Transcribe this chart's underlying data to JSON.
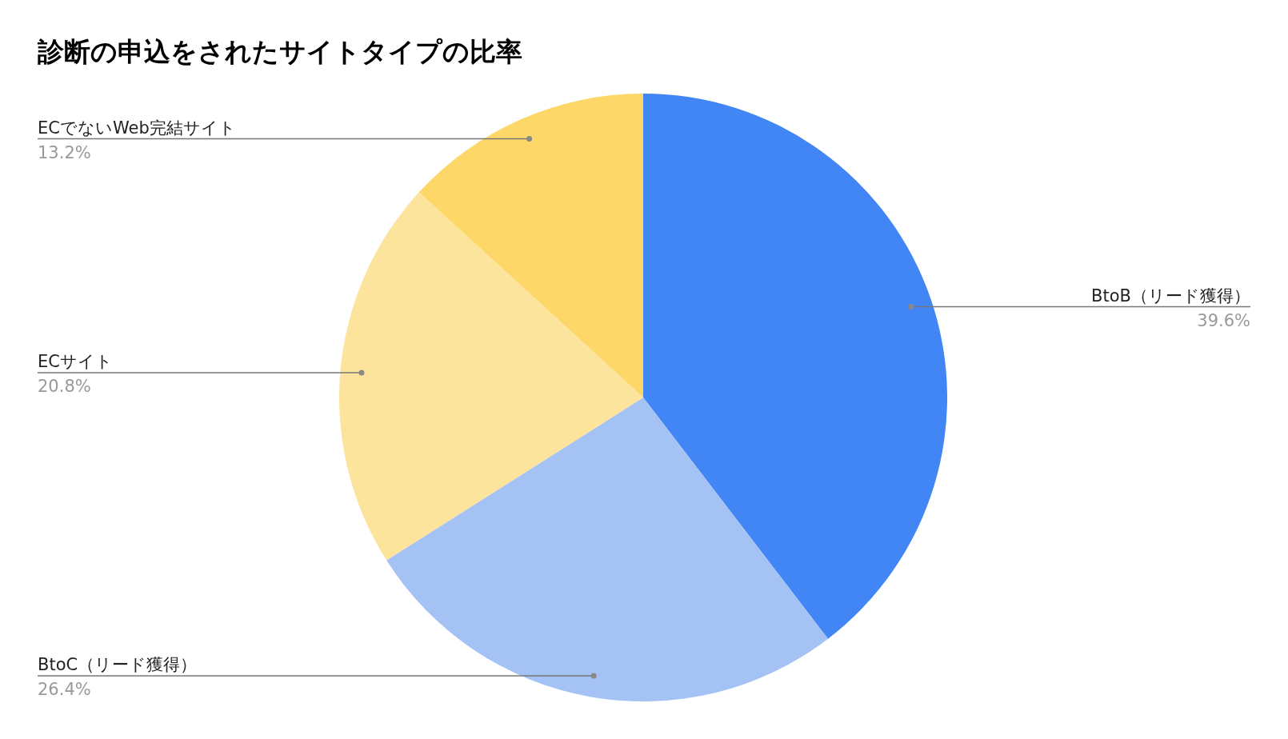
{
  "chart_data": {
    "type": "pie",
    "title": "診断の申込をされたサイトタイプの比率",
    "categories": [
      "BtoB（リード獲得）",
      "BtoC（リード獲得）",
      "ECサイト",
      "ECでないWeb完結サイト"
    ],
    "values": [
      39.6,
      26.4,
      20.8,
      13.2
    ],
    "colors": [
      "#4285f4",
      "#a4c2f4",
      "#fde49c",
      "#fdd868"
    ],
    "value_labels": [
      "39.6%",
      "26.4%",
      "20.8%",
      "13.2%"
    ]
  }
}
